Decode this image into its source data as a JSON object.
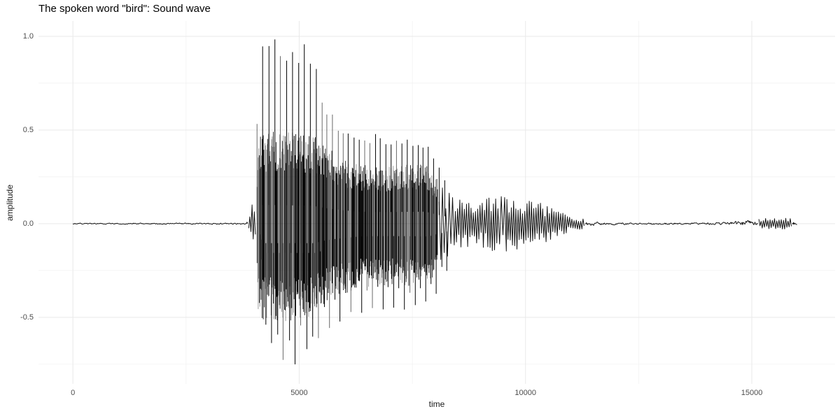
{
  "chart_data": {
    "type": "line",
    "title": "The spoken word \"bird\": Sound wave",
    "xlabel": "time",
    "ylabel": "amplitude",
    "x_range": [
      -760,
      16840
    ],
    "y_range": [
      -0.855,
      1.082
    ],
    "x_ticks": [
      {
        "value": 0,
        "label": "0"
      },
      {
        "value": 5000,
        "label": "5000"
      },
      {
        "value": 10000,
        "label": "10000"
      },
      {
        "value": 15000,
        "label": "15000"
      }
    ],
    "x_minor_ticks": [
      2500,
      7500,
      12500
    ],
    "y_ticks": [
      {
        "value": 1.0,
        "label": "1.0"
      },
      {
        "value": 0.5,
        "label": "0.5"
      },
      {
        "value": 0.0,
        "label": "0.0"
      },
      {
        "value": -0.5,
        "label": "-0.5"
      }
    ],
    "y_minor_ticks": [
      0.75,
      0.25,
      -0.25,
      -0.75
    ],
    "grid": true,
    "legend": false,
    "colors": {
      "waveform": "#000000",
      "grid_major": "#e9e9e9",
      "grid_minor": "#f2f2f2",
      "tick_label": "#4d4d4d",
      "axis_title": "#1a1a1a",
      "title": "#000000",
      "background": "#ffffff"
    },
    "series": [
      {
        "name": "sound wave",
        "n_samples": 16000,
        "description": "Digitized speech waveform of the spoken word 'bird': silence until ~3850, plosive onset ~3950 (±0.13), loud burst 4100-5400 with periodic spikes peaking near +1.0 and troughs to -0.78, sustained vowel ±0.45 until ~7900, decay to ±0.13 by 8600, wiggles fading through 11500, near-silence, small release burst ±0.03 from ~14800 to 16000.",
        "envelope_core": [
          [
            0,
            -0.005,
            0.005
          ],
          [
            3830,
            -0.006,
            0.006
          ],
          [
            3870,
            -0.03,
            0.03
          ],
          [
            3930,
            -0.05,
            0.05
          ],
          [
            3955,
            -0.13,
            0.12
          ],
          [
            3985,
            -0.13,
            0.12
          ],
          [
            4005,
            -0.06,
            0.06
          ],
          [
            4050,
            -0.12,
            0.12
          ],
          [
            4090,
            -0.45,
            0.42
          ],
          [
            4150,
            -0.52,
            0.5
          ],
          [
            5300,
            -0.52,
            0.48
          ],
          [
            5450,
            -0.46,
            0.44
          ],
          [
            5800,
            -0.4,
            0.38
          ],
          [
            6300,
            -0.34,
            0.32
          ],
          [
            7000,
            -0.33,
            0.31
          ],
          [
            7800,
            -0.34,
            0.32
          ],
          [
            8000,
            -0.28,
            0.26
          ],
          [
            8300,
            -0.18,
            0.17
          ],
          [
            8600,
            -0.13,
            0.12
          ],
          [
            9000,
            -0.13,
            0.13
          ],
          [
            9500,
            -0.16,
            0.15
          ],
          [
            9900,
            -0.13,
            0.13
          ],
          [
            10300,
            -0.12,
            0.13
          ],
          [
            10700,
            -0.07,
            0.07
          ],
          [
            11000,
            -0.045,
            0.045
          ],
          [
            11400,
            -0.02,
            0.02
          ],
          [
            11800,
            -0.01,
            0.01
          ],
          [
            12600,
            -0.007,
            0.007
          ],
          [
            14000,
            -0.008,
            0.008
          ],
          [
            14500,
            -0.012,
            0.012
          ],
          [
            14800,
            -0.025,
            0.025
          ],
          [
            15100,
            -0.022,
            0.026
          ],
          [
            15350,
            -0.03,
            0.032
          ],
          [
            15600,
            -0.028,
            0.03
          ],
          [
            15850,
            -0.03,
            0.028
          ],
          [
            16000,
            -0.018,
            0.015
          ]
        ],
        "envelope_peaks": [
          [
            4050,
            -0.2,
            0.2
          ],
          [
            4090,
            -0.55,
            0.9
          ],
          [
            4200,
            -0.68,
            0.97
          ],
          [
            4350,
            -0.74,
            1.0
          ],
          [
            4600,
            -0.78,
            0.98
          ],
          [
            4900,
            -0.76,
            0.99
          ],
          [
            5150,
            -0.77,
            0.97
          ],
          [
            5330,
            -0.73,
            0.98
          ],
          [
            5420,
            -0.66,
            0.8
          ],
          [
            5550,
            -0.6,
            0.66
          ],
          [
            5750,
            -0.55,
            0.58
          ],
          [
            6000,
            -0.5,
            0.53
          ],
          [
            6350,
            -0.48,
            0.5
          ],
          [
            6800,
            -0.47,
            0.48
          ],
          [
            7300,
            -0.46,
            0.47
          ],
          [
            7800,
            -0.44,
            0.45
          ],
          [
            8050,
            -0.35,
            0.34
          ],
          [
            8300,
            -0.22,
            0.2
          ],
          [
            8600,
            -0.14,
            0.13
          ]
        ],
        "pitch_period_samples": {
          "burst": 130,
          "vowel": 118
        }
      }
    ]
  }
}
